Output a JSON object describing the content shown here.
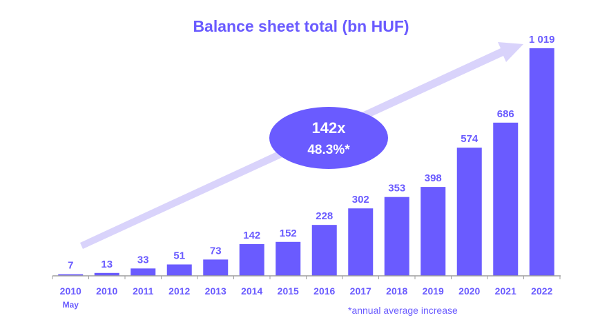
{
  "chart_data": {
    "type": "bar",
    "title": "Balance sheet total (bn HUF)",
    "categories": [
      "2010",
      "2010",
      "2011",
      "2012",
      "2013",
      "2014",
      "2015",
      "2016",
      "2017",
      "2018",
      "2019",
      "2020",
      "2021",
      "2022"
    ],
    "category_sublabels": [
      "May",
      "",
      "",
      "",
      "",
      "",
      "",
      "",
      "",
      "",
      "",
      "",
      "",
      ""
    ],
    "values": [
      7,
      13,
      33,
      51,
      73,
      142,
      152,
      228,
      302,
      353,
      398,
      574,
      686,
      1019
    ],
    "value_labels": [
      "7",
      "13",
      "33",
      "51",
      "73",
      "142",
      "152",
      "228",
      "302",
      "353",
      "398",
      "574",
      "686",
      "1 019"
    ],
    "ylim": [
      0,
      1019
    ],
    "xlabel": "",
    "ylabel": "",
    "grid": false,
    "legend": "none",
    "annotation": {
      "growth_multiple": "142x",
      "annual_increase": "48.3%*"
    },
    "footnote": "*annual average increase"
  },
  "colors": {
    "bar": "#6a5bff",
    "text": "#6a5bff",
    "arrow": "#d9d3fb",
    "bubble": "#6a5bff",
    "bubble_text": "#ffffff",
    "axis": "#9e9e9e"
  }
}
